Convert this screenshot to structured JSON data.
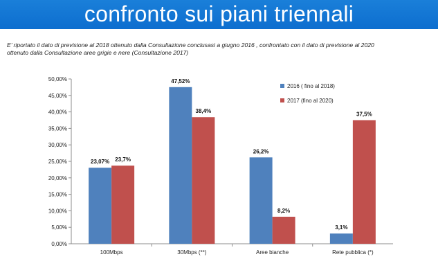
{
  "header": {
    "title": "confronto sui piani triennali",
    "subtitle_line1": "E’ riportato il dato di previsione al 2018 ottenuto dalla Consultazione conclusasi a giugno 2016 , confrontato con il dato di previsione al 2020",
    "subtitle_line2": "ottenuto  dalla Consultazione aree grigie e nere (Consultazione 2017)"
  },
  "colors": {
    "title_bar": "#0d6ecf",
    "series_2016": "#4f81bd",
    "series_2017": "#c0504d"
  },
  "chart_data": {
    "type": "bar",
    "categories": [
      "100Mbps",
      "30Mbps (**)",
      "Aree bianche",
      "Rete pubblica (*)"
    ],
    "series": [
      {
        "name": "2016 ( fino al 2018)",
        "values": [
          23.07,
          47.52,
          26.2,
          3.1
        ],
        "labels": [
          "23,07%",
          "47,52%",
          "26,2%",
          "3,1%"
        ]
      },
      {
        "name": "2017 (fino al 2020)",
        "values": [
          23.7,
          38.4,
          8.2,
          37.5
        ],
        "labels": [
          "23,7%",
          "38,4%",
          "8,2%",
          "37,5%"
        ]
      }
    ],
    "ylim": [
      0,
      50
    ],
    "yticks": [
      "0,00%",
      "5,00%",
      "10,00%",
      "15,00%",
      "20,00%",
      "25,00%",
      "30,00%",
      "35,00%",
      "40,00%",
      "45,00%",
      "50,00%"
    ],
    "grid": false,
    "legend_position": "top-right"
  }
}
